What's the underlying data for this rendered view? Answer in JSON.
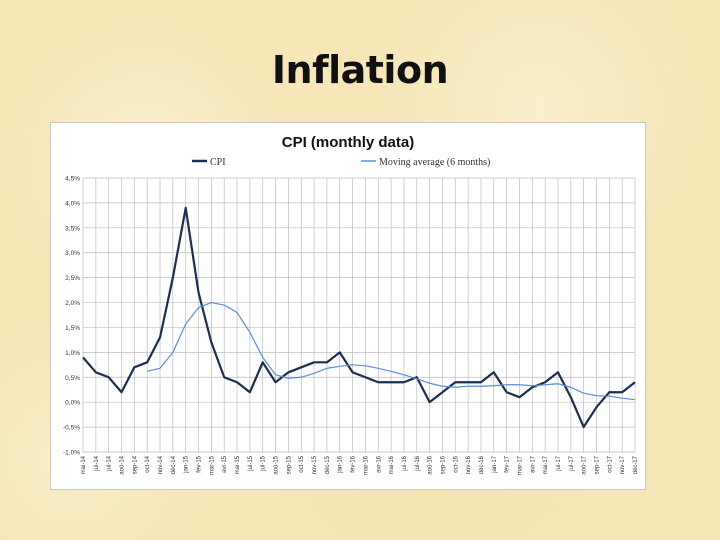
{
  "slide": {
    "title": "Inflation"
  },
  "chart_data": {
    "type": "line",
    "title": "CPI (monthly data)",
    "xlabel": "",
    "ylabel": "",
    "ylim": [
      -1.0,
      4.5
    ],
    "yticks": [
      "-1,0%",
      "-0,5%",
      "0,0%",
      "0,5%",
      "1,0%",
      "1,5%",
      "2,0%",
      "2,5%",
      "3,0%",
      "3,5%",
      "4,0%",
      "4,5%"
    ],
    "grid": true,
    "legend": "top",
    "categories": [
      "mai-14",
      "jui-14",
      "jul-14",
      "aoû-14",
      "sep-14",
      "oct-14",
      "nov-14",
      "déc-14",
      "jan-15",
      "fév-15",
      "mar-15",
      "avr-15",
      "mai-15",
      "jui-15",
      "jul-15",
      "aoû-15",
      "sep-15",
      "oct-15",
      "nov-15",
      "déc-15",
      "jan-16",
      "fév-16",
      "mar-16",
      "avr-16",
      "mai-16",
      "jui-16",
      "jul-16",
      "aoû-16",
      "sep-16",
      "oct-16",
      "nov-16",
      "déc-16",
      "jan-17",
      "fév-17",
      "mar-17",
      "avr-17",
      "mai-17",
      "jui-17",
      "jul-17",
      "aoû-17",
      "sep-17",
      "oct-17",
      "nov-17",
      "déc-17"
    ],
    "series": [
      {
        "name": "CPI",
        "color": "#1b2f4f",
        "values": [
          0.9,
          0.6,
          0.5,
          0.2,
          0.7,
          0.8,
          1.3,
          2.5,
          3.9,
          2.2,
          1.2,
          0.5,
          0.4,
          0.2,
          0.8,
          0.4,
          0.6,
          0.7,
          0.8,
          0.8,
          1.0,
          0.6,
          0.5,
          0.4,
          0.4,
          0.4,
          0.5,
          0.0,
          0.2,
          0.4,
          0.4,
          0.4,
          0.6,
          0.2,
          0.1,
          0.3,
          0.4,
          0.6,
          0.1,
          -0.5,
          -0.1,
          0.2,
          0.2,
          0.4
        ]
      },
      {
        "name": "Moving average (6 months)",
        "color": "#5b8dd9",
        "values": [
          null,
          null,
          null,
          null,
          null,
          0.62,
          0.68,
          1.0,
          1.57,
          1.9,
          2.0,
          1.95,
          1.8,
          1.4,
          0.9,
          0.55,
          0.48,
          0.5,
          0.58,
          0.68,
          0.72,
          0.75,
          0.73,
          0.68,
          0.62,
          0.55,
          0.47,
          0.38,
          0.32,
          0.3,
          0.32,
          0.32,
          0.33,
          0.35,
          0.35,
          0.33,
          0.35,
          0.37,
          0.3,
          0.18,
          0.13,
          0.12,
          0.08,
          0.05
        ]
      }
    ]
  }
}
